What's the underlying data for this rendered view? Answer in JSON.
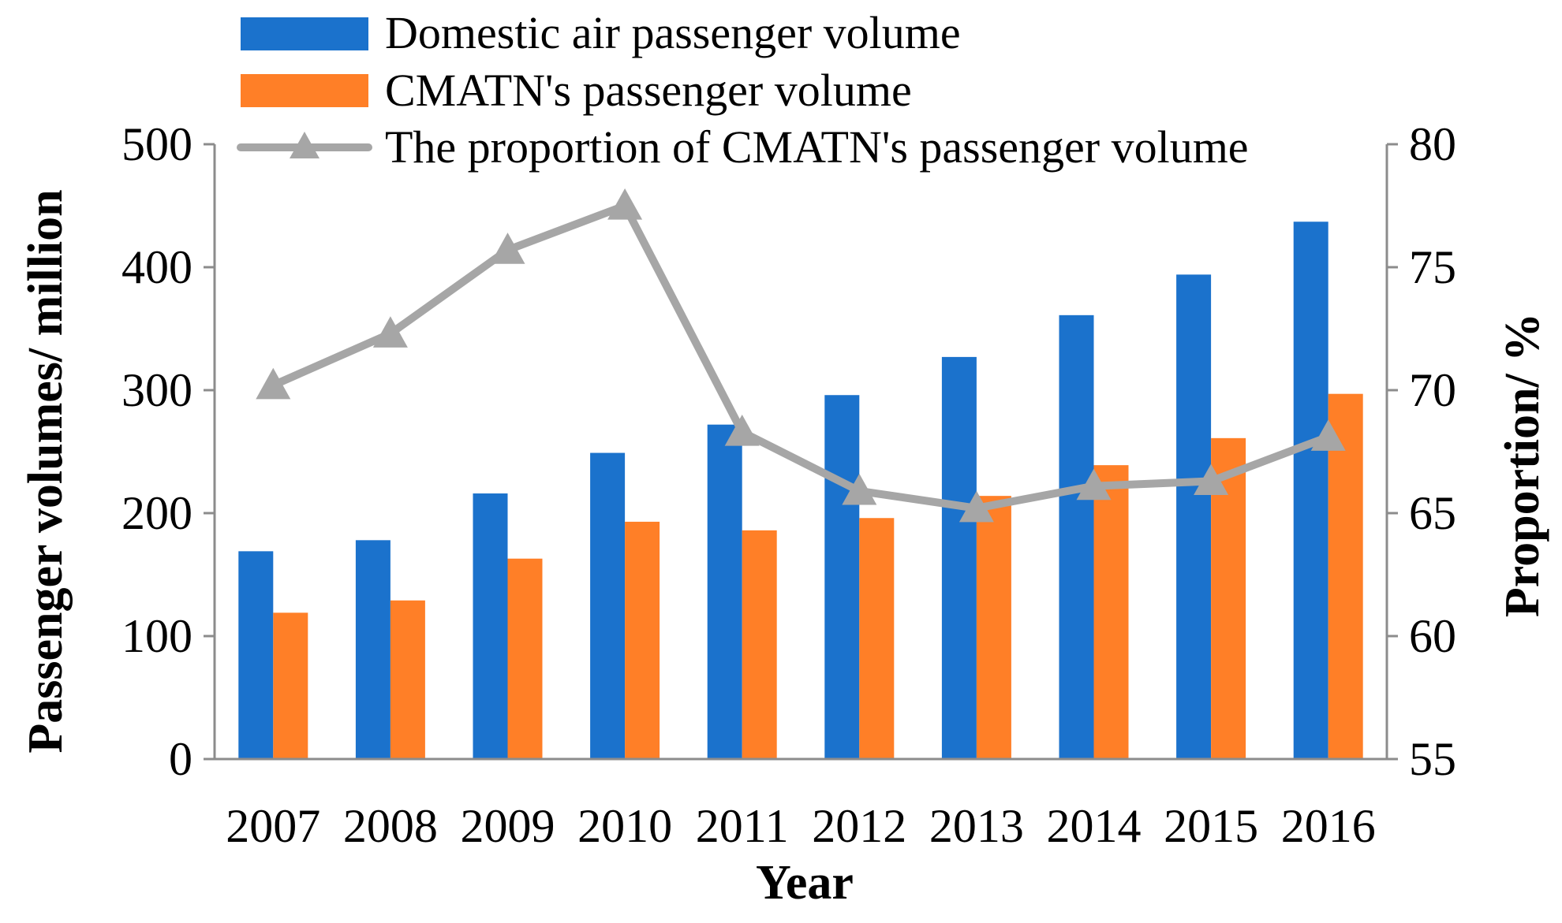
{
  "chart_data": {
    "type": "bar",
    "categories": [
      "2007",
      "2008",
      "2009",
      "2010",
      "2011",
      "2012",
      "2013",
      "2014",
      "2015",
      "2016"
    ],
    "series": [
      {
        "name": "Domestic air passenger volume",
        "kind": "bar",
        "axis": "left",
        "color": "#1b72cc",
        "values": [
          169,
          178,
          216,
          249,
          272,
          296,
          327,
          361,
          394,
          437
        ]
      },
      {
        "name": "CMATN's passenger volume",
        "kind": "bar",
        "axis": "left",
        "color": "#ff7f27",
        "values": [
          119,
          129,
          163,
          193,
          186,
          196,
          214,
          239,
          261,
          297
        ]
      },
      {
        "name": "The proportion of CMATN's passenger volume",
        "kind": "line",
        "axis": "right",
        "marker": "triangle",
        "color": "#a6a6a6",
        "values": [
          70.2,
          72.3,
          75.7,
          77.5,
          68.3,
          65.9,
          65.2,
          66.1,
          66.3,
          68.1
        ]
      }
    ],
    "xlabel": "Year",
    "ylabel": "Passenger volumes/ million",
    "y2label": "Proportion/ %",
    "ylim": [
      0,
      500
    ],
    "yticks": [
      0,
      100,
      200,
      300,
      400,
      500
    ],
    "y2lim": [
      55,
      80
    ],
    "y2ticks": [
      55,
      60,
      65,
      70,
      75,
      80
    ],
    "grid": false,
    "legend_position": "top"
  }
}
